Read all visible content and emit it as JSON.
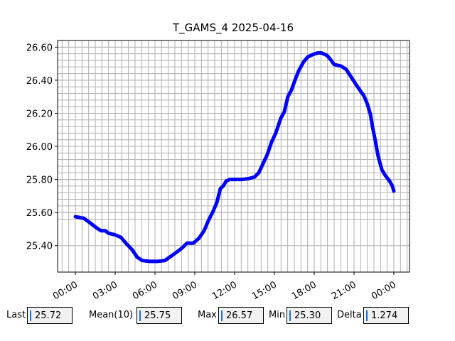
{
  "chart_data": {
    "type": "line",
    "title": "T_GAMS_4 2025-04-16",
    "x": [
      0,
      0.64,
      1.07,
      1.55,
      1.93,
      2.25,
      2.5,
      3,
      3.43,
      3.86,
      4.28,
      4.66,
      5.03,
      5.57,
      6.21,
      6.75,
      7.28,
      7.71,
      8.03,
      8.41,
      8.89,
      9.32,
      9.7,
      10.02,
      10.39,
      10.66,
      10.93,
      11.14,
      11.36,
      11.62,
      12,
      12.53,
      13.07,
      13.5,
      13.82,
      14.14,
      14.46,
      14.78,
      15.1,
      15.48,
      15.75,
      16.01,
      16.28,
      16.55,
      16.82,
      17.19,
      17.51,
      17.89,
      18.26,
      18.53,
      18.96,
      19.23,
      19.5,
      20.03,
      20.41,
      20.78,
      21.1,
      21.48,
      21.75,
      22.01,
      22.23,
      22.39,
      22.6,
      22.82,
      23.09,
      23.35,
      23.68,
      23.89,
      24
    ],
    "series": [
      {
        "name": "T_GAMS_4",
        "color": "#0000ff",
        "values": [
          25.575,
          25.565,
          25.54,
          25.51,
          25.49,
          25.49,
          25.475,
          25.465,
          25.45,
          25.41,
          25.375,
          25.33,
          25.31,
          25.305,
          25.305,
          25.31,
          25.34,
          25.365,
          25.385,
          25.415,
          25.415,
          25.445,
          25.49,
          25.55,
          25.61,
          25.66,
          25.745,
          25.76,
          25.79,
          25.8,
          25.8,
          25.8,
          25.805,
          25.815,
          25.84,
          25.895,
          25.95,
          26.025,
          26.08,
          26.17,
          26.21,
          26.3,
          26.34,
          26.4,
          26.455,
          26.51,
          26.54,
          26.555,
          26.565,
          26.565,
          26.55,
          26.525,
          26.495,
          26.485,
          26.465,
          26.42,
          26.38,
          26.335,
          26.305,
          26.255,
          26.195,
          26.12,
          26.035,
          25.94,
          25.86,
          25.825,
          25.79,
          25.76,
          25.73
        ]
      }
    ],
    "xlim": [
      -1.34,
      25.18
    ],
    "xticks": [
      {
        "value": 0,
        "label": "00:00"
      },
      {
        "value": 3,
        "label": "03:00"
      },
      {
        "value": 6,
        "label": "06:00"
      },
      {
        "value": 9,
        "label": "09:00"
      },
      {
        "value": 12,
        "label": "12:00"
      },
      {
        "value": 15,
        "label": "15:00"
      },
      {
        "value": 18,
        "label": "18:00"
      },
      {
        "value": 21,
        "label": "21:00"
      },
      {
        "value": 24,
        "label": "00:00"
      }
    ],
    "ylim": [
      25.24,
      26.64
    ],
    "yticks": [
      {
        "value": 25.4,
        "label": "25.40"
      },
      {
        "value": 25.6,
        "label": "25.60"
      },
      {
        "value": 25.8,
        "label": "25.80"
      },
      {
        "value": 26,
        "label": "26.00"
      },
      {
        "value": 26.2,
        "label": "26.20"
      },
      {
        "value": 26.4,
        "label": "26.40"
      },
      {
        "value": 26.6,
        "label": "26.60"
      }
    ],
    "grid": true
  },
  "status_bar": [
    {
      "label": "Last",
      "value": "25.72"
    },
    {
      "label": "Mean(10)",
      "value": "25.75"
    },
    {
      "label": "Max",
      "value": "26.57"
    },
    {
      "label": "Min",
      "value": "25.30"
    },
    {
      "label": "Delta",
      "value": "1.274"
    }
  ]
}
